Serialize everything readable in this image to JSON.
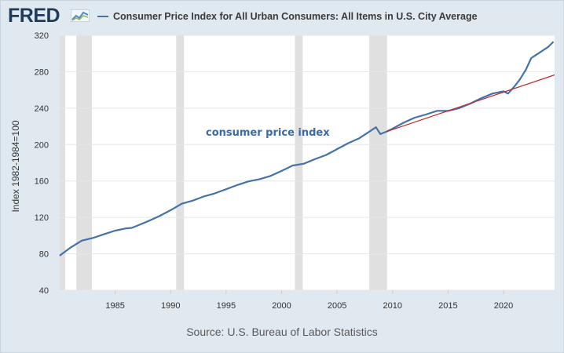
{
  "logo": {
    "text": "FRED"
  },
  "legend": {
    "label": "Consumer Price Index for All Urban Consumers: All Items in U.S. City Average"
  },
  "source": "Source: U.S. Bureau of Labor Statistics",
  "colors": {
    "series": "#4572a7",
    "trendline": "#c0282c",
    "recession": "#e0e0e0",
    "background": "#e1e9f0",
    "plot": "#ffffff",
    "annotation": "#3a6aa8"
  },
  "chart_data": {
    "type": "line",
    "title": "Consumer Price Index for All Urban Consumers: All Items in U.S. City Average",
    "xlabel": "",
    "ylabel": "Index 1982-1984=100",
    "xlim": [
      1980.0,
      2024.6
    ],
    "ylim": [
      40,
      320
    ],
    "yticks": [
      40,
      80,
      120,
      160,
      200,
      240,
      280,
      320
    ],
    "xticks": [
      1985,
      1990,
      1995,
      2000,
      2005,
      2010,
      2015,
      2020
    ],
    "grid": "horizontal",
    "recessions": [
      [
        1980.0,
        1980.5
      ],
      [
        1981.5,
        1982.9
      ],
      [
        1990.5,
        1991.2
      ],
      [
        2001.2,
        2001.9
      ],
      [
        2007.9,
        2009.5
      ]
    ],
    "annotation": "consumer price index",
    "series": [
      {
        "name": "Consumer Price Index for All Urban Consumers: All Items in U.S. City Average",
        "x": [
          1980.0,
          1981.0,
          1982.0,
          1983.0,
          1984.0,
          1985.0,
          1986.0,
          1986.5,
          1987.0,
          1988.0,
          1989.0,
          1990.0,
          1991.0,
          1992.0,
          1993.0,
          1994.0,
          1995.0,
          1996.0,
          1997.0,
          1998.0,
          1999.0,
          2000.0,
          2001.0,
          2002.0,
          2003.0,
          2004.0,
          2005.0,
          2006.0,
          2007.0,
          2008.0,
          2008.5,
          2008.9,
          2009.5,
          2010.0,
          2011.0,
          2012.0,
          2013.0,
          2014.0,
          2015.0,
          2016.0,
          2017.0,
          2018.0,
          2019.0,
          2020.0,
          2020.4,
          2021.0,
          2021.5,
          2022.0,
          2022.5,
          2023.0,
          2024.0,
          2024.5
        ],
        "y": [
          78.0,
          87.0,
          94.5,
          97.5,
          101.5,
          105.5,
          108.0,
          108.5,
          111.0,
          116.0,
          121.5,
          128.0,
          135.0,
          138.5,
          143.0,
          146.5,
          151.0,
          155.5,
          159.5,
          162.0,
          165.5,
          171.0,
          177.0,
          179.0,
          184.0,
          188.5,
          195.0,
          201.5,
          207.0,
          215.0,
          219.0,
          211.5,
          214.5,
          217.5,
          224.0,
          229.5,
          233.0,
          237.0,
          237.0,
          240.0,
          245.0,
          251.0,
          256.0,
          258.5,
          256.0,
          264.0,
          272.0,
          282.0,
          295.0,
          299.0,
          307.0,
          313.0
        ]
      },
      {
        "name": "",
        "x": [
          2009.5,
          2024.6
        ],
        "y": [
          214.5,
          276.5
        ]
      }
    ]
  }
}
